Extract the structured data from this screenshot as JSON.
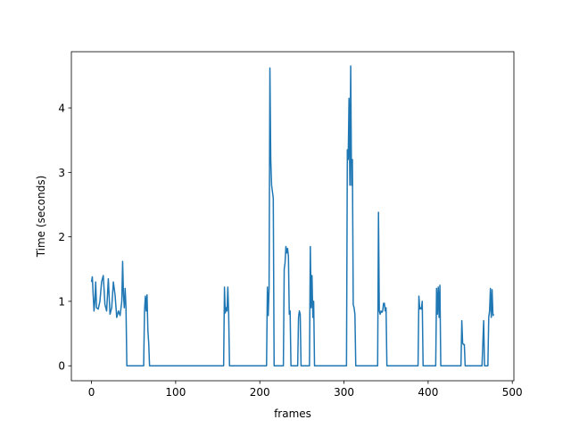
{
  "chart_data": {
    "type": "line",
    "xlabel": "frames",
    "ylabel": "Time (seconds)",
    "x": [
      0,
      1,
      2,
      3,
      4,
      5,
      6,
      8,
      10,
      12,
      14,
      16,
      18,
      20,
      22,
      24,
      26,
      28,
      30,
      32,
      34,
      36,
      37,
      38,
      39,
      40,
      41,
      42,
      62,
      63,
      64,
      65,
      66,
      67,
      68,
      69,
      157,
      158,
      159,
      160,
      161,
      162,
      163,
      164,
      208,
      209,
      210,
      211,
      212,
      213,
      214,
      215,
      216,
      217,
      228,
      229,
      230,
      231,
      232,
      233,
      234,
      235,
      236,
      237,
      245,
      246,
      247,
      248,
      249,
      259,
      260,
      261,
      262,
      263,
      264,
      265,
      303,
      304,
      305,
      306,
      307,
      308,
      309,
      310,
      311,
      312,
      313,
      314,
      340,
      341,
      342,
      343,
      344,
      345,
      346,
      347,
      348,
      349,
      350,
      351,
      388,
      389,
      390,
      391,
      392,
      393,
      394,
      409,
      410,
      411,
      412,
      413,
      414,
      415,
      439,
      440,
      441,
      442,
      443,
      444,
      464,
      465,
      466,
      467,
      471,
      472,
      473,
      474,
      475,
      476,
      477,
      478
    ],
    "series": [
      {
        "name": "time",
        "color": "#1f77b4",
        "values": [
          1.3,
          1.38,
          1.1,
          0.85,
          1.0,
          1.3,
          0.9,
          0.88,
          1.0,
          1.3,
          1.4,
          0.95,
          0.85,
          1.35,
          0.8,
          0.9,
          1.3,
          1.1,
          0.75,
          0.85,
          0.78,
          1.0,
          1.62,
          1.1,
          0.9,
          1.2,
          0.9,
          0,
          0,
          0.85,
          1.08,
          0.85,
          1.1,
          0.55,
          0.35,
          0,
          0,
          1.22,
          0.82,
          0.9,
          0.85,
          1.22,
          0.8,
          0,
          0,
          1.22,
          0.78,
          1.2,
          4.62,
          3.2,
          2.8,
          2.7,
          2.6,
          0,
          0,
          1.5,
          1.6,
          1.85,
          1.75,
          1.82,
          1.7,
          0.8,
          0.85,
          0,
          0,
          0.75,
          0.85,
          0.8,
          0,
          0,
          1.85,
          0.9,
          1.4,
          0.75,
          1.0,
          0,
          0,
          3.35,
          3.2,
          4.15,
          2.8,
          4.65,
          2.8,
          3.2,
          0.95,
          0.9,
          0.8,
          0,
          0,
          2.38,
          0.85,
          0.8,
          0.85,
          0.83,
          0.85,
          0.97,
          0.97,
          0.85,
          0.9,
          0,
          0,
          1.08,
          0.88,
          0.9,
          0.88,
          1.0,
          0,
          0,
          1.2,
          0.8,
          1.22,
          0.75,
          1.25,
          0,
          0,
          0.7,
          0.35,
          0.33,
          0.33,
          0,
          0,
          0.35,
          0.7,
          0,
          0,
          0.75,
          0.85,
          1.2,
          0.75,
          1.18,
          0.78,
          0.8
        ]
      }
    ],
    "xlim": [
      -23.9,
      501.9
    ],
    "xticks": [
      0,
      100,
      200,
      300,
      400,
      500
    ],
    "ylim": [
      -0.232,
      4.872
    ],
    "yticks": [
      0,
      1,
      2,
      3,
      4
    ]
  }
}
